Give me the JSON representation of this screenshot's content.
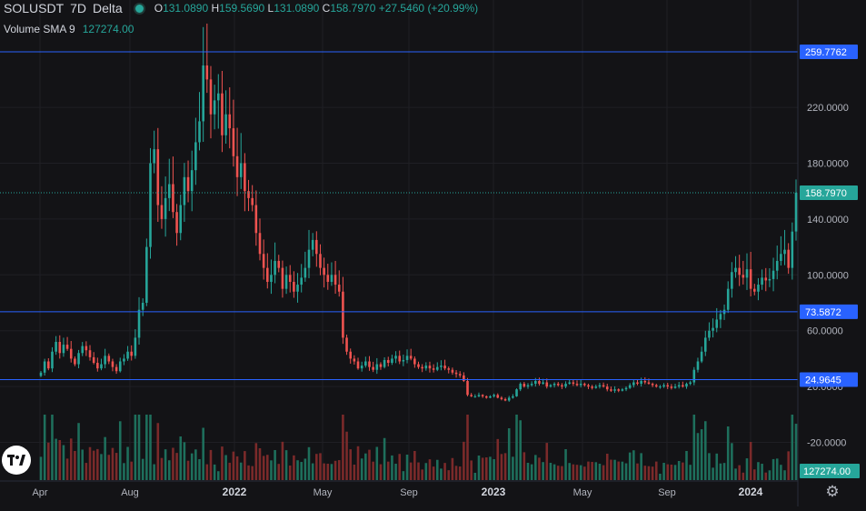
{
  "header": {
    "symbol": "SOLUSDT",
    "interval": "7D",
    "exchange": "Delta",
    "ohlc": {
      "open_label": "O",
      "open": "131.0890",
      "high_label": "H",
      "high": "159.5690",
      "low_label": "L",
      "low": "131.0890",
      "close_label": "C",
      "close": "158.7970",
      "change": "+27.5460 (+20.99%)"
    }
  },
  "volume_legend": {
    "label": "Volume SMA 9",
    "value": "127274.00"
  },
  "colors": {
    "background": "#131316",
    "up": "#26a69a",
    "down": "#ef5350",
    "up_volume": "#1e6f5c",
    "down_volume": "#7b2a2a",
    "hline": "#2962ff",
    "grid": "#1f1f24"
  },
  "icons": {
    "logo": "tradingview-logo-icon",
    "settings": "gear-icon"
  },
  "chart_data": {
    "type": "candlestick",
    "title": "SOLUSDT 7D Delta",
    "y_axis": {
      "range": [
        -47,
        259.7762
      ],
      "ticks": [
        "259.7762",
        "220.0000",
        "180.0000",
        "140.0000",
        "100.0000",
        "60.0000",
        "20.0000",
        "-20.0000"
      ],
      "log": false
    },
    "x_axis": {
      "ticks": [
        "Apr",
        "Aug",
        "2022",
        "May",
        "Sep",
        "2023",
        "May",
        "Sep",
        "2024"
      ],
      "bold_ticks": [
        "2022",
        "2023",
        "2024"
      ]
    },
    "horizontal_lines": [
      {
        "value": 259.7762,
        "label": "259.7762"
      },
      {
        "value": 73.5872,
        "label": "73.5872"
      },
      {
        "value": 24.9645,
        "label": "24.9645"
      }
    ],
    "last_price": {
      "value": 158.797,
      "label": "158.7970"
    },
    "volume_last": {
      "label": "127274.00"
    },
    "closes": [
      30,
      38,
      33,
      45,
      52,
      44,
      50,
      47,
      40,
      36,
      44,
      49,
      46,
      41,
      37,
      33,
      36,
      42,
      38,
      34,
      31,
      38,
      40,
      45,
      42,
      55,
      75,
      80,
      120,
      180,
      190,
      150,
      140,
      155,
      165,
      145,
      130,
      150,
      170,
      160,
      175,
      195,
      210,
      250,
      240,
      215,
      225,
      230,
      200,
      215,
      205,
      185,
      170,
      180,
      160,
      155,
      150,
      130,
      115,
      105,
      95,
      100,
      110,
      105,
      90,
      100,
      95,
      88,
      93,
      98,
      105,
      118,
      125,
      115,
      105,
      100,
      95,
      100,
      93,
      88,
      55,
      45,
      40,
      38,
      33,
      35,
      38,
      34,
      32,
      36,
      34,
      39,
      37,
      40,
      42,
      38,
      39,
      42,
      40,
      36,
      34,
      33,
      35,
      33,
      32,
      34,
      35,
      33,
      32,
      30,
      29,
      28,
      24,
      14,
      13,
      13,
      14,
      13,
      12,
      13,
      14,
      12,
      11,
      10,
      12,
      13,
      18,
      22,
      20,
      21,
      22,
      24,
      22,
      23,
      20,
      21,
      22,
      21,
      20,
      22,
      23,
      22,
      21,
      22,
      21,
      20,
      19,
      20,
      21,
      20,
      18,
      17,
      18,
      17,
      18,
      19,
      21,
      23,
      22,
      24,
      23,
      22,
      21,
      20,
      20,
      21,
      20,
      19,
      20,
      21,
      20,
      22,
      23,
      32,
      38,
      45,
      55,
      60,
      62,
      68,
      72,
      75,
      90,
      102,
      105,
      100,
      98,
      104,
      90,
      88,
      93,
      98,
      96,
      97,
      103,
      110,
      115,
      118,
      105,
      131,
      158.797
    ]
  }
}
